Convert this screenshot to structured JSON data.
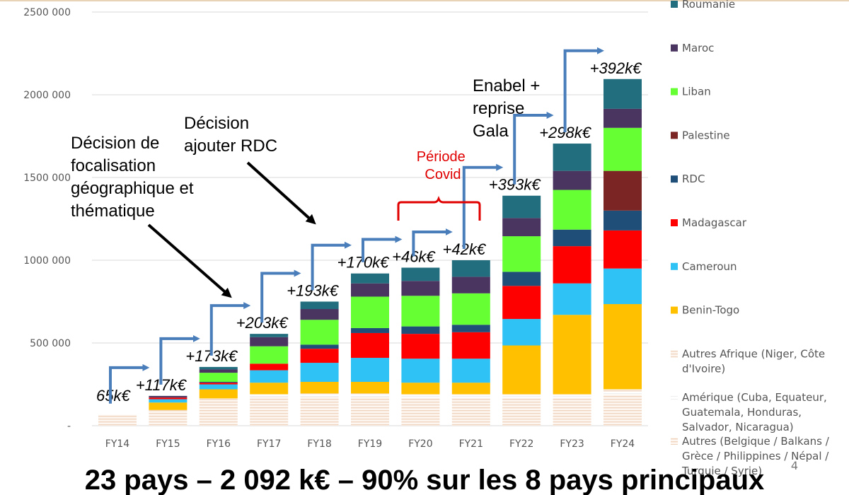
{
  "chart_data": {
    "type": "bar",
    "stacked": true,
    "categories": [
      "FY14",
      "FY15",
      "FY16",
      "FY17",
      "FY18",
      "FY19",
      "FY20",
      "FY21",
      "FY22",
      "FY23",
      "FY24"
    ],
    "y_ticks": [
      "-",
      "500 000",
      "1000 000",
      "1500 000",
      "2000 000",
      "2500 000"
    ],
    "ylim": [
      0,
      2500000
    ],
    "grid": true,
    "legend_position": "right",
    "series": [
      {
        "name": "Autres (Belgique / Balkans / Grèce / Philippines / Népal / Turquie / Syrie)",
        "color": "#f6e4d6",
        "pattern": "lines",
        "values": [
          65000,
          95000,
          165000,
          175000,
          175000,
          175000,
          170000,
          170000,
          170000,
          170000,
          190000
        ]
      },
      {
        "name": "Amérique (Cuba, Equateur, Guatemala, Honduras, Salvador, Nicaragua)",
        "color": "#f8f8f8",
        "pattern": "lines-light",
        "values": [
          0,
          0,
          0,
          15000,
          15000,
          15000,
          15000,
          15000,
          15000,
          15000,
          15000
        ]
      },
      {
        "name": "Autres Afrique (Niger, Côte d'Ivoire)",
        "color": "#f3dccb",
        "pattern": "lines",
        "values": [
          0,
          0,
          0,
          0,
          5000,
          5000,
          5000,
          5000,
          5000,
          5000,
          15000
        ]
      },
      {
        "name": "Benin-Togo",
        "color": "#ffc000",
        "values": [
          0,
          45000,
          55000,
          70000,
          70000,
          70000,
          70000,
          70000,
          295000,
          480000,
          515000
        ]
      },
      {
        "name": "Cameroun",
        "color": "#2ec2f5",
        "values": [
          0,
          20000,
          30000,
          75000,
          115000,
          145000,
          145000,
          145000,
          160000,
          190000,
          215000
        ]
      },
      {
        "name": "Madagascar",
        "color": "#ff0000",
        "values": [
          0,
          10000,
          10000,
          40000,
          85000,
          150000,
          150000,
          160000,
          200000,
          225000,
          230000
        ]
      },
      {
        "name": "RDC",
        "color": "#1f4e79",
        "values": [
          0,
          0,
          5000,
          0,
          25000,
          30000,
          45000,
          45000,
          85000,
          100000,
          120000
        ]
      },
      {
        "name": "Palestine",
        "color": "#7b2525",
        "values": [
          0,
          0,
          0,
          0,
          0,
          0,
          0,
          0,
          0,
          0,
          240000
        ]
      },
      {
        "name": "Liban",
        "color": "#66ff33",
        "values": [
          0,
          0,
          55000,
          105000,
          150000,
          190000,
          185000,
          190000,
          215000,
          240000,
          260000
        ]
      },
      {
        "name": "Maroc",
        "color": "#4a3460",
        "values": [
          0,
          10000,
          20000,
          55000,
          65000,
          80000,
          90000,
          100000,
          110000,
          115000,
          115000
        ]
      },
      {
        "name": "Roumanie",
        "color": "#226e7e",
        "values": [
          0,
          0,
          15000,
          20000,
          45000,
          60000,
          80000,
          100000,
          135000,
          165000,
          180000
        ]
      }
    ],
    "growth_labels": [
      "65k€",
      "+117k€",
      "+173k€",
      "+203k€",
      "+193k€",
      "+170k€",
      "+46k€",
      "+42k€",
      "+393k€",
      "+298k€",
      "+392k€"
    ],
    "annotations": {
      "decision_focus": [
        "Décision de",
        "focalisation",
        "géographique et",
        "thématique"
      ],
      "decision_rdc": [
        "Décision",
        "ajouter RDC"
      ],
      "covid": [
        "Période",
        "Covid"
      ],
      "enabel": [
        "Enabel +",
        "reprise",
        "Gala"
      ]
    }
  },
  "legend_labels": [
    [
      "Roumanie"
    ],
    [
      "Maroc"
    ],
    [
      "Liban"
    ],
    [
      "Palestine"
    ],
    [
      "RDC"
    ],
    [
      "Madagascar"
    ],
    [
      "Cameroun"
    ],
    [
      "Benin-Togo"
    ],
    [
      "Autres Afrique (Niger, Côte",
      "d'Ivoire)"
    ],
    [
      "Amérique (Cuba, Equateur,",
      "Guatemala, Honduras,",
      "Salvador, Nicaragua)"
    ],
    [
      "Autres (Belgique / Balkans /",
      "Grèce / Philippines / Népal /",
      "Turquie / Syrie)"
    ]
  ],
  "legend_colors": [
    "#226e7e",
    "#4a3460",
    "#66ff33",
    "#7b2525",
    "#1f4e79",
    "#ff0000",
    "#2ec2f5",
    "#ffc000",
    "#f3dccb",
    "#f8f8f8",
    "#f6e4d6"
  ],
  "headline": "23 pays – 2 092 k€ – 90% sur les 8 pays principaux",
  "page_number": "4",
  "colors": {
    "arrow": "#4a7ebb",
    "grid": "#d9d9d9",
    "covid": "#e00000"
  }
}
